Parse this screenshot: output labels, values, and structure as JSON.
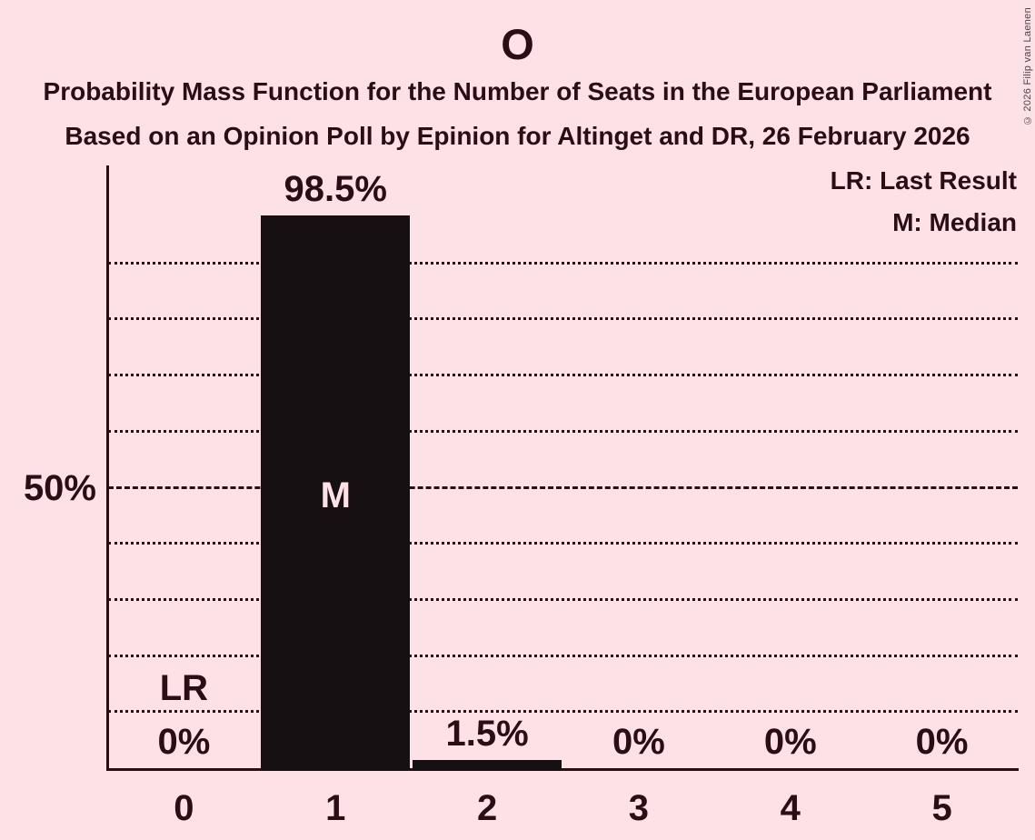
{
  "title": "O",
  "subtitles": [
    "Probability Mass Function for the Number of Seats in the European Parliament",
    "Based on an Opinion Poll by Epinion for Altinget and DR, 26 February 2026"
  ],
  "legend": {
    "last_result": "LR: Last Result",
    "median": "M: Median"
  },
  "copyright": "© 2026 Filip van Laenen",
  "colors": {
    "background": "#fce1e6",
    "foreground": "#2b0d16",
    "bar": "#171013",
    "median_label": "#fce1e6"
  },
  "chart_data": {
    "type": "bar",
    "title": "O",
    "subtitle_lines": [
      "Probability Mass Function for the Number of Seats in the European Parliament",
      "Based on an Opinion Poll by Epinion for Altinget and DR, 26 February 2026"
    ],
    "xlabel": "",
    "ylabel": "",
    "categories": [
      "0",
      "1",
      "2",
      "3",
      "4",
      "5"
    ],
    "values": [
      0,
      98.5,
      1.5,
      0,
      0,
      0
    ],
    "value_labels": [
      "0%",
      "98.5%",
      "1.5%",
      "0%",
      "0%",
      "0%"
    ],
    "ylim": [
      0,
      107.5
    ],
    "y_tick_label": "50%",
    "y_tick_percent": 50,
    "gridlines": {
      "minor_percents": [
        10,
        20,
        30,
        40,
        60,
        70,
        80,
        90
      ],
      "minor_style": "dotted",
      "major_percent": 50,
      "major_style": "dashed"
    },
    "legend_position": "top-right",
    "legend_entries": [
      "LR: Last Result",
      "M: Median"
    ],
    "annotations": {
      "median": {
        "column_index": 1,
        "label": "M"
      },
      "last_result": {
        "column_index": 0,
        "label": "LR"
      }
    }
  }
}
